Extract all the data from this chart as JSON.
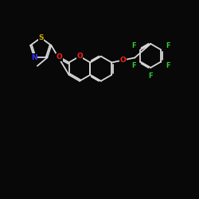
{
  "background_color": "#080808",
  "bond_color": "#d8d8d8",
  "atom_colors": {
    "S": "#ccaa00",
    "N": "#3333ff",
    "O": "#ff2020",
    "F": "#33cc33",
    "C": "#d8d8d8"
  },
  "figsize": [
    2.5,
    2.5
  ],
  "dpi": 100,
  "lw": 1.3,
  "fs": 6.2,
  "dbl_off": 0.07
}
